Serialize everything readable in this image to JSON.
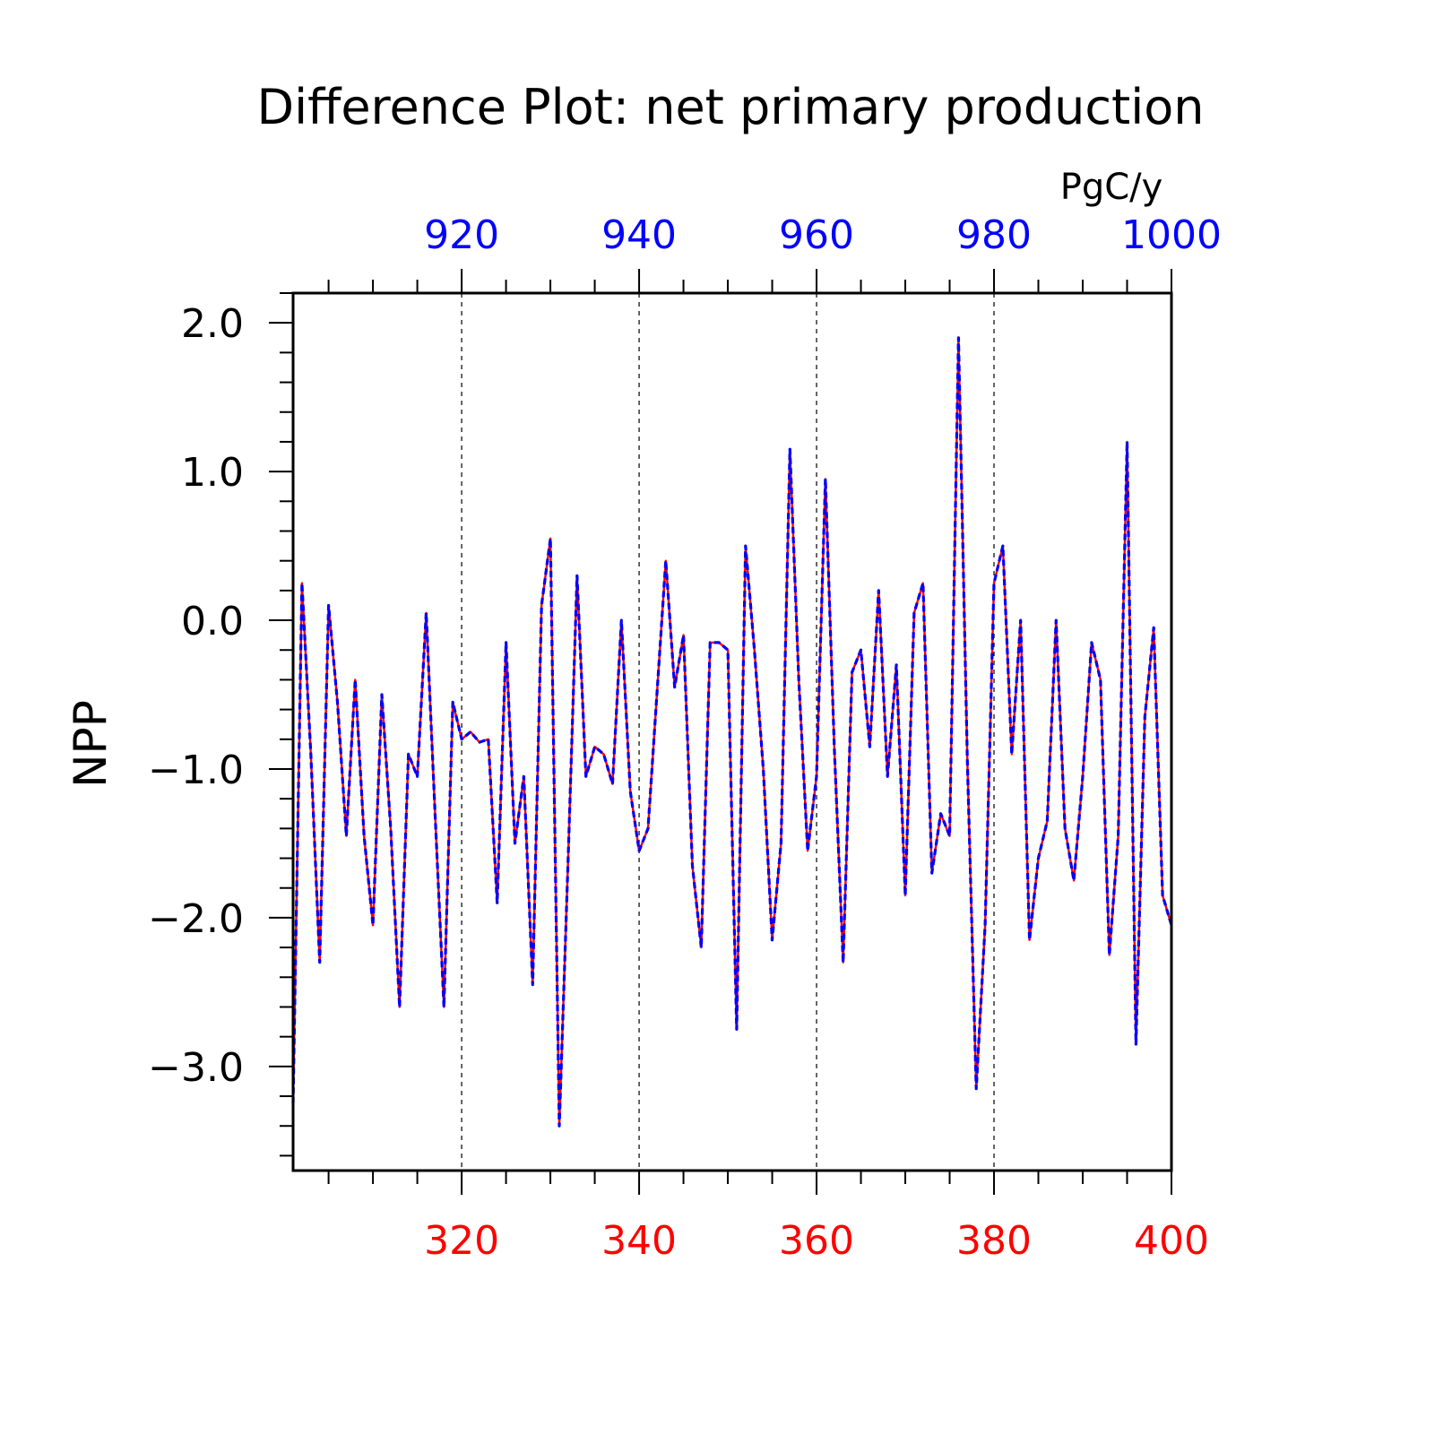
{
  "chart_data": {
    "type": "line",
    "title": "Difference Plot: net primary production",
    "units": "PgC/y",
    "ylabel": "NPP",
    "xlabel": "",
    "x_bottom": {
      "range": [
        301,
        400
      ],
      "ticks": [
        320,
        340,
        360,
        380,
        400
      ],
      "tick_labels": [
        "320",
        "340",
        "360",
        "380",
        "400"
      ],
      "color": "#ff0000"
    },
    "x_top": {
      "range": [
        901,
        1000
      ],
      "ticks": [
        920,
        940,
        960,
        980,
        1000
      ],
      "tick_labels": [
        "920",
        "940",
        "960",
        "980",
        "1000"
      ],
      "color": "#0000ff"
    },
    "y": {
      "range": [
        -3.7,
        2.2
      ],
      "ticks": [
        -3.0,
        -2.0,
        -1.0,
        0.0,
        1.0,
        2.0
      ],
      "tick_labels": [
        "−3.0",
        "−2.0",
        "−1.0",
        "0.0",
        "1.0",
        "2.0"
      ]
    },
    "grid": "vertical dashed at major x ticks",
    "x": [
      301,
      302,
      303,
      304,
      305,
      306,
      307,
      308,
      309,
      310,
      311,
      312,
      313,
      314,
      315,
      316,
      317,
      318,
      319,
      320,
      321,
      322,
      323,
      324,
      325,
      326,
      327,
      328,
      329,
      330,
      331,
      332,
      333,
      334,
      335,
      336,
      337,
      338,
      339,
      340,
      341,
      342,
      343,
      344,
      345,
      346,
      347,
      348,
      349,
      350,
      351,
      352,
      353,
      354,
      355,
      356,
      357,
      358,
      359,
      360,
      361,
      362,
      363,
      364,
      365,
      366,
      367,
      368,
      369,
      370,
      371,
      372,
      373,
      374,
      375,
      376,
      377,
      378,
      379,
      380,
      381,
      382,
      383,
      384,
      385,
      386,
      387,
      388,
      389,
      390,
      391,
      392,
      393,
      394,
      395,
      396,
      397,
      398,
      399,
      400
    ],
    "series": [
      {
        "color": "#ff0000",
        "style": "solid",
        "values": [
          -3.25,
          0.25,
          -0.9,
          -2.3,
          0.1,
          -0.55,
          -1.45,
          -0.4,
          -1.45,
          -2.05,
          -0.5,
          -1.4,
          -2.6,
          -0.9,
          -1.05,
          0.05,
          -1.3,
          -2.6,
          -0.55,
          -0.8,
          -0.75,
          -0.82,
          -0.8,
          -1.9,
          -0.15,
          -1.5,
          -1.05,
          -2.45,
          0.1,
          0.55,
          -3.4,
          -1.6,
          0.3,
          -1.05,
          -0.85,
          -0.9,
          -1.1,
          0.0,
          -1.15,
          -1.55,
          -1.4,
          -0.5,
          0.4,
          -0.45,
          -0.1,
          -1.65,
          -2.2,
          -0.15,
          -0.15,
          -0.2,
          -2.75,
          0.5,
          -0.2,
          -1.0,
          -2.15,
          -1.5,
          1.15,
          -0.4,
          -1.55,
          -1.05,
          0.95,
          -0.85,
          -2.3,
          -0.35,
          -0.2,
          -0.85,
          0.2,
          -1.05,
          -0.3,
          -1.85,
          0.05,
          0.25,
          -1.7,
          -1.3,
          -1.45,
          1.9,
          -0.95,
          -3.15,
          -2.05,
          0.25,
          0.5,
          -0.9,
          0.0,
          -2.15,
          -1.6,
          -1.35,
          0.0,
          -1.4,
          -1.75,
          -1.05,
          -0.15,
          -0.4,
          -2.25,
          -1.45,
          1.2,
          -2.85,
          -0.65,
          -0.05,
          -1.85,
          -2.05
        ]
      },
      {
        "color": "#0000ff",
        "style": "dashed",
        "values": [
          -3.25,
          0.25,
          -0.9,
          -2.3,
          0.1,
          -0.55,
          -1.45,
          -0.4,
          -1.45,
          -2.05,
          -0.5,
          -1.4,
          -2.6,
          -0.9,
          -1.05,
          0.05,
          -1.3,
          -2.6,
          -0.55,
          -0.8,
          -0.75,
          -0.82,
          -0.8,
          -1.9,
          -0.15,
          -1.5,
          -1.05,
          -2.45,
          0.1,
          0.55,
          -3.4,
          -1.6,
          0.3,
          -1.05,
          -0.85,
          -0.9,
          -1.1,
          0.0,
          -1.15,
          -1.55,
          -1.4,
          -0.5,
          0.4,
          -0.45,
          -0.1,
          -1.65,
          -2.2,
          -0.15,
          -0.15,
          -0.2,
          -2.75,
          0.5,
          -0.2,
          -1.0,
          -2.15,
          -1.5,
          1.15,
          -0.4,
          -1.55,
          -1.05,
          0.95,
          -0.85,
          -2.3,
          -0.35,
          -0.2,
          -0.85,
          0.2,
          -1.05,
          -0.3,
          -1.85,
          0.05,
          0.25,
          -1.7,
          -1.3,
          -1.45,
          1.9,
          -0.95,
          -3.15,
          -2.05,
          0.25,
          0.5,
          -0.9,
          0.0,
          -2.15,
          -1.6,
          -1.35,
          0.0,
          -1.4,
          -1.75,
          -1.05,
          -0.15,
          -0.4,
          -2.25,
          -1.45,
          1.2,
          -2.85,
          -0.65,
          -0.05,
          -1.85,
          -2.05
        ]
      }
    ]
  }
}
